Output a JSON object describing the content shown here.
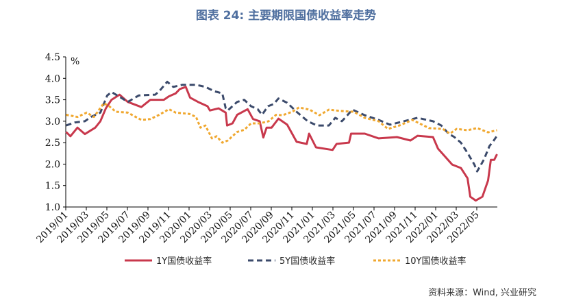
{
  "title": "图表 24: 主要期限国债收益率走势",
  "source": "资料来源：Wind, 兴业研究",
  "chart_data": {
    "type": "line",
    "title": "图表 24: 主要期限国债收益率走势",
    "ylabel": "%",
    "ylim": [
      1.0,
      4.5
    ],
    "yticks": [
      "1.0",
      "1.5",
      "2.0",
      "2.5",
      "3.0",
      "3.5",
      "4.0",
      "4.5"
    ],
    "xlim": [
      "2019-01-01",
      "2022-06-30"
    ],
    "xticks": [
      "2019/01",
      "2019/03",
      "2019/05",
      "2019/07",
      "2019/09",
      "2019/11",
      "2020/01",
      "2020/03",
      "2020/05",
      "2020/07",
      "2020/09",
      "2020/11",
      "2021/01",
      "2021/03",
      "2021/05",
      "2021/07",
      "2021/09",
      "2021/11",
      "2022/01",
      "2022/03",
      "2022/05"
    ],
    "grid": false,
    "legend_position": "bottom",
    "series": [
      {
        "name": "1Y国债收益率",
        "color": "#c8384c",
        "style": "solid",
        "points": [
          [
            "2019-01-02",
            2.75
          ],
          [
            "2019-01-15",
            2.65
          ],
          [
            "2019-02-05",
            2.85
          ],
          [
            "2019-02-25",
            2.7
          ],
          [
            "2019-03-28",
            2.85
          ],
          [
            "2019-04-12",
            3.0
          ],
          [
            "2019-04-28",
            3.3
          ],
          [
            "2019-05-15",
            3.5
          ],
          [
            "2019-06-08",
            3.62
          ],
          [
            "2019-07-02",
            3.45
          ],
          [
            "2019-08-12",
            3.33
          ],
          [
            "2019-09-08",
            3.5
          ],
          [
            "2019-10-18",
            3.5
          ],
          [
            "2019-11-02",
            3.58
          ],
          [
            "2019-11-22",
            3.65
          ],
          [
            "2019-12-04",
            3.75
          ],
          [
            "2019-12-22",
            3.8
          ],
          [
            "2020-01-04",
            3.55
          ],
          [
            "2020-01-28",
            3.45
          ],
          [
            "2020-02-24",
            3.35
          ],
          [
            "2020-03-02",
            3.25
          ],
          [
            "2020-03-28",
            3.3
          ],
          [
            "2020-04-18",
            3.2
          ],
          [
            "2020-04-22",
            2.9
          ],
          [
            "2020-05-08",
            2.95
          ],
          [
            "2020-05-22",
            3.15
          ],
          [
            "2020-06-22",
            3.28
          ],
          [
            "2020-07-08",
            3.05
          ],
          [
            "2020-07-28",
            3.0
          ],
          [
            "2020-08-08",
            2.62
          ],
          [
            "2020-08-18",
            2.85
          ],
          [
            "2020-09-02",
            2.85
          ],
          [
            "2020-09-22",
            3.06
          ],
          [
            "2020-10-18",
            2.92
          ],
          [
            "2020-11-15",
            2.52
          ],
          [
            "2020-12-15",
            2.47
          ],
          [
            "2020-12-22",
            2.71
          ],
          [
            "2021-01-12",
            2.39
          ],
          [
            "2021-02-28",
            2.33
          ],
          [
            "2021-03-12",
            2.47
          ],
          [
            "2021-04-18",
            2.5
          ],
          [
            "2021-04-24",
            2.71
          ],
          [
            "2021-06-04",
            2.71
          ],
          [
            "2021-07-15",
            2.6
          ],
          [
            "2021-09-08",
            2.63
          ],
          [
            "2021-10-18",
            2.55
          ],
          [
            "2021-11-08",
            2.66
          ],
          [
            "2021-12-24",
            2.63
          ],
          [
            "2022-01-08",
            2.36
          ],
          [
            "2022-02-18",
            1.99
          ],
          [
            "2022-03-15",
            1.91
          ],
          [
            "2022-04-04",
            1.67
          ],
          [
            "2022-04-12",
            1.24
          ],
          [
            "2022-04-28",
            1.15
          ],
          [
            "2022-05-18",
            1.24
          ],
          [
            "2022-06-04",
            1.62
          ],
          [
            "2022-06-12",
            2.1
          ],
          [
            "2022-06-22",
            2.1
          ],
          [
            "2022-06-30",
            2.23
          ]
        ]
      },
      {
        "name": "5Y国债收益率",
        "color": "#3b4a6b",
        "style": "dashed",
        "points": [
          [
            "2019-01-02",
            2.9
          ],
          [
            "2019-01-28",
            2.97
          ],
          [
            "2019-02-25",
            3.0
          ],
          [
            "2019-03-15",
            3.1
          ],
          [
            "2019-04-12",
            3.2
          ],
          [
            "2019-05-02",
            3.6
          ],
          [
            "2019-05-15",
            3.68
          ],
          [
            "2019-06-12",
            3.55
          ],
          [
            "2019-07-02",
            3.45
          ],
          [
            "2019-08-04",
            3.6
          ],
          [
            "2019-09-22",
            3.62
          ],
          [
            "2019-10-04",
            3.7
          ],
          [
            "2019-10-28",
            3.92
          ],
          [
            "2019-11-15",
            3.8
          ],
          [
            "2019-12-12",
            3.85
          ],
          [
            "2020-01-22",
            3.85
          ],
          [
            "2020-02-18",
            3.8
          ],
          [
            "2020-03-15",
            3.7
          ],
          [
            "2020-04-08",
            3.65
          ],
          [
            "2020-04-18",
            3.3
          ],
          [
            "2020-04-24",
            3.25
          ],
          [
            "2020-05-22",
            3.45
          ],
          [
            "2020-06-12",
            3.5
          ],
          [
            "2020-07-02",
            3.35
          ],
          [
            "2020-07-22",
            3.28
          ],
          [
            "2020-08-04",
            3.15
          ],
          [
            "2020-08-22",
            3.35
          ],
          [
            "2020-09-08",
            3.4
          ],
          [
            "2020-09-22",
            3.53
          ],
          [
            "2020-10-18",
            3.43
          ],
          [
            "2020-11-15",
            3.22
          ],
          [
            "2020-12-18",
            3.0
          ],
          [
            "2021-01-15",
            2.9
          ],
          [
            "2021-02-18",
            2.9
          ],
          [
            "2021-03-08",
            3.08
          ],
          [
            "2021-03-28",
            3.0
          ],
          [
            "2021-04-28",
            3.27
          ],
          [
            "2021-06-04",
            3.14
          ],
          [
            "2021-07-15",
            3.03
          ],
          [
            "2021-08-18",
            2.92
          ],
          [
            "2021-09-28",
            3.0
          ],
          [
            "2021-11-08",
            3.08
          ],
          [
            "2021-12-24",
            3.0
          ],
          [
            "2022-01-18",
            2.9
          ],
          [
            "2022-02-08",
            2.71
          ],
          [
            "2022-02-24",
            2.63
          ],
          [
            "2022-03-15",
            2.5
          ],
          [
            "2022-04-04",
            2.26
          ],
          [
            "2022-04-24",
            1.99
          ],
          [
            "2022-05-02",
            1.83
          ],
          [
            "2022-05-22",
            2.1
          ],
          [
            "2022-06-08",
            2.42
          ],
          [
            "2022-06-18",
            2.52
          ],
          [
            "2022-06-30",
            2.66
          ]
        ]
      },
      {
        "name": "10Y国债收益率",
        "color": "#f0a830",
        "style": "dotted",
        "points": [
          [
            "2019-01-02",
            3.15
          ],
          [
            "2019-02-05",
            3.1
          ],
          [
            "2019-03-02",
            3.2
          ],
          [
            "2019-03-24",
            3.1
          ],
          [
            "2019-04-22",
            3.42
          ],
          [
            "2019-05-08",
            3.35
          ],
          [
            "2019-05-28",
            3.22
          ],
          [
            "2019-07-02",
            3.2
          ],
          [
            "2019-08-12",
            3.03
          ],
          [
            "2019-09-08",
            3.05
          ],
          [
            "2019-10-04",
            3.15
          ],
          [
            "2019-11-02",
            3.28
          ],
          [
            "2019-11-22",
            3.2
          ],
          [
            "2020-01-02",
            3.17
          ],
          [
            "2020-01-22",
            3.1
          ],
          [
            "2020-02-04",
            2.85
          ],
          [
            "2020-02-18",
            2.9
          ],
          [
            "2020-03-08",
            2.6
          ],
          [
            "2020-03-22",
            2.65
          ],
          [
            "2020-04-08",
            2.5
          ],
          [
            "2020-04-24",
            2.55
          ],
          [
            "2020-05-22",
            2.75
          ],
          [
            "2020-06-12",
            2.8
          ],
          [
            "2020-07-02",
            2.95
          ],
          [
            "2020-07-28",
            2.95
          ],
          [
            "2020-08-24",
            3.0
          ],
          [
            "2020-09-15",
            3.15
          ],
          [
            "2020-10-04",
            3.14
          ],
          [
            "2020-11-02",
            3.22
          ],
          [
            "2020-11-22",
            3.32
          ],
          [
            "2020-12-24",
            3.27
          ],
          [
            "2021-01-22",
            3.14
          ],
          [
            "2021-02-18",
            3.27
          ],
          [
            "2021-03-22",
            3.24
          ],
          [
            "2021-05-02",
            3.22
          ],
          [
            "2021-06-04",
            3.08
          ],
          [
            "2021-07-15",
            3.0
          ],
          [
            "2021-08-12",
            2.82
          ],
          [
            "2021-09-15",
            2.9
          ],
          [
            "2021-10-24",
            3.03
          ],
          [
            "2021-12-12",
            2.84
          ],
          [
            "2022-01-22",
            2.82
          ],
          [
            "2022-02-12",
            2.71
          ],
          [
            "2022-03-02",
            2.82
          ],
          [
            "2022-04-04",
            2.79
          ],
          [
            "2022-05-02",
            2.84
          ],
          [
            "2022-06-04",
            2.74
          ],
          [
            "2022-06-30",
            2.79
          ]
        ]
      }
    ]
  }
}
